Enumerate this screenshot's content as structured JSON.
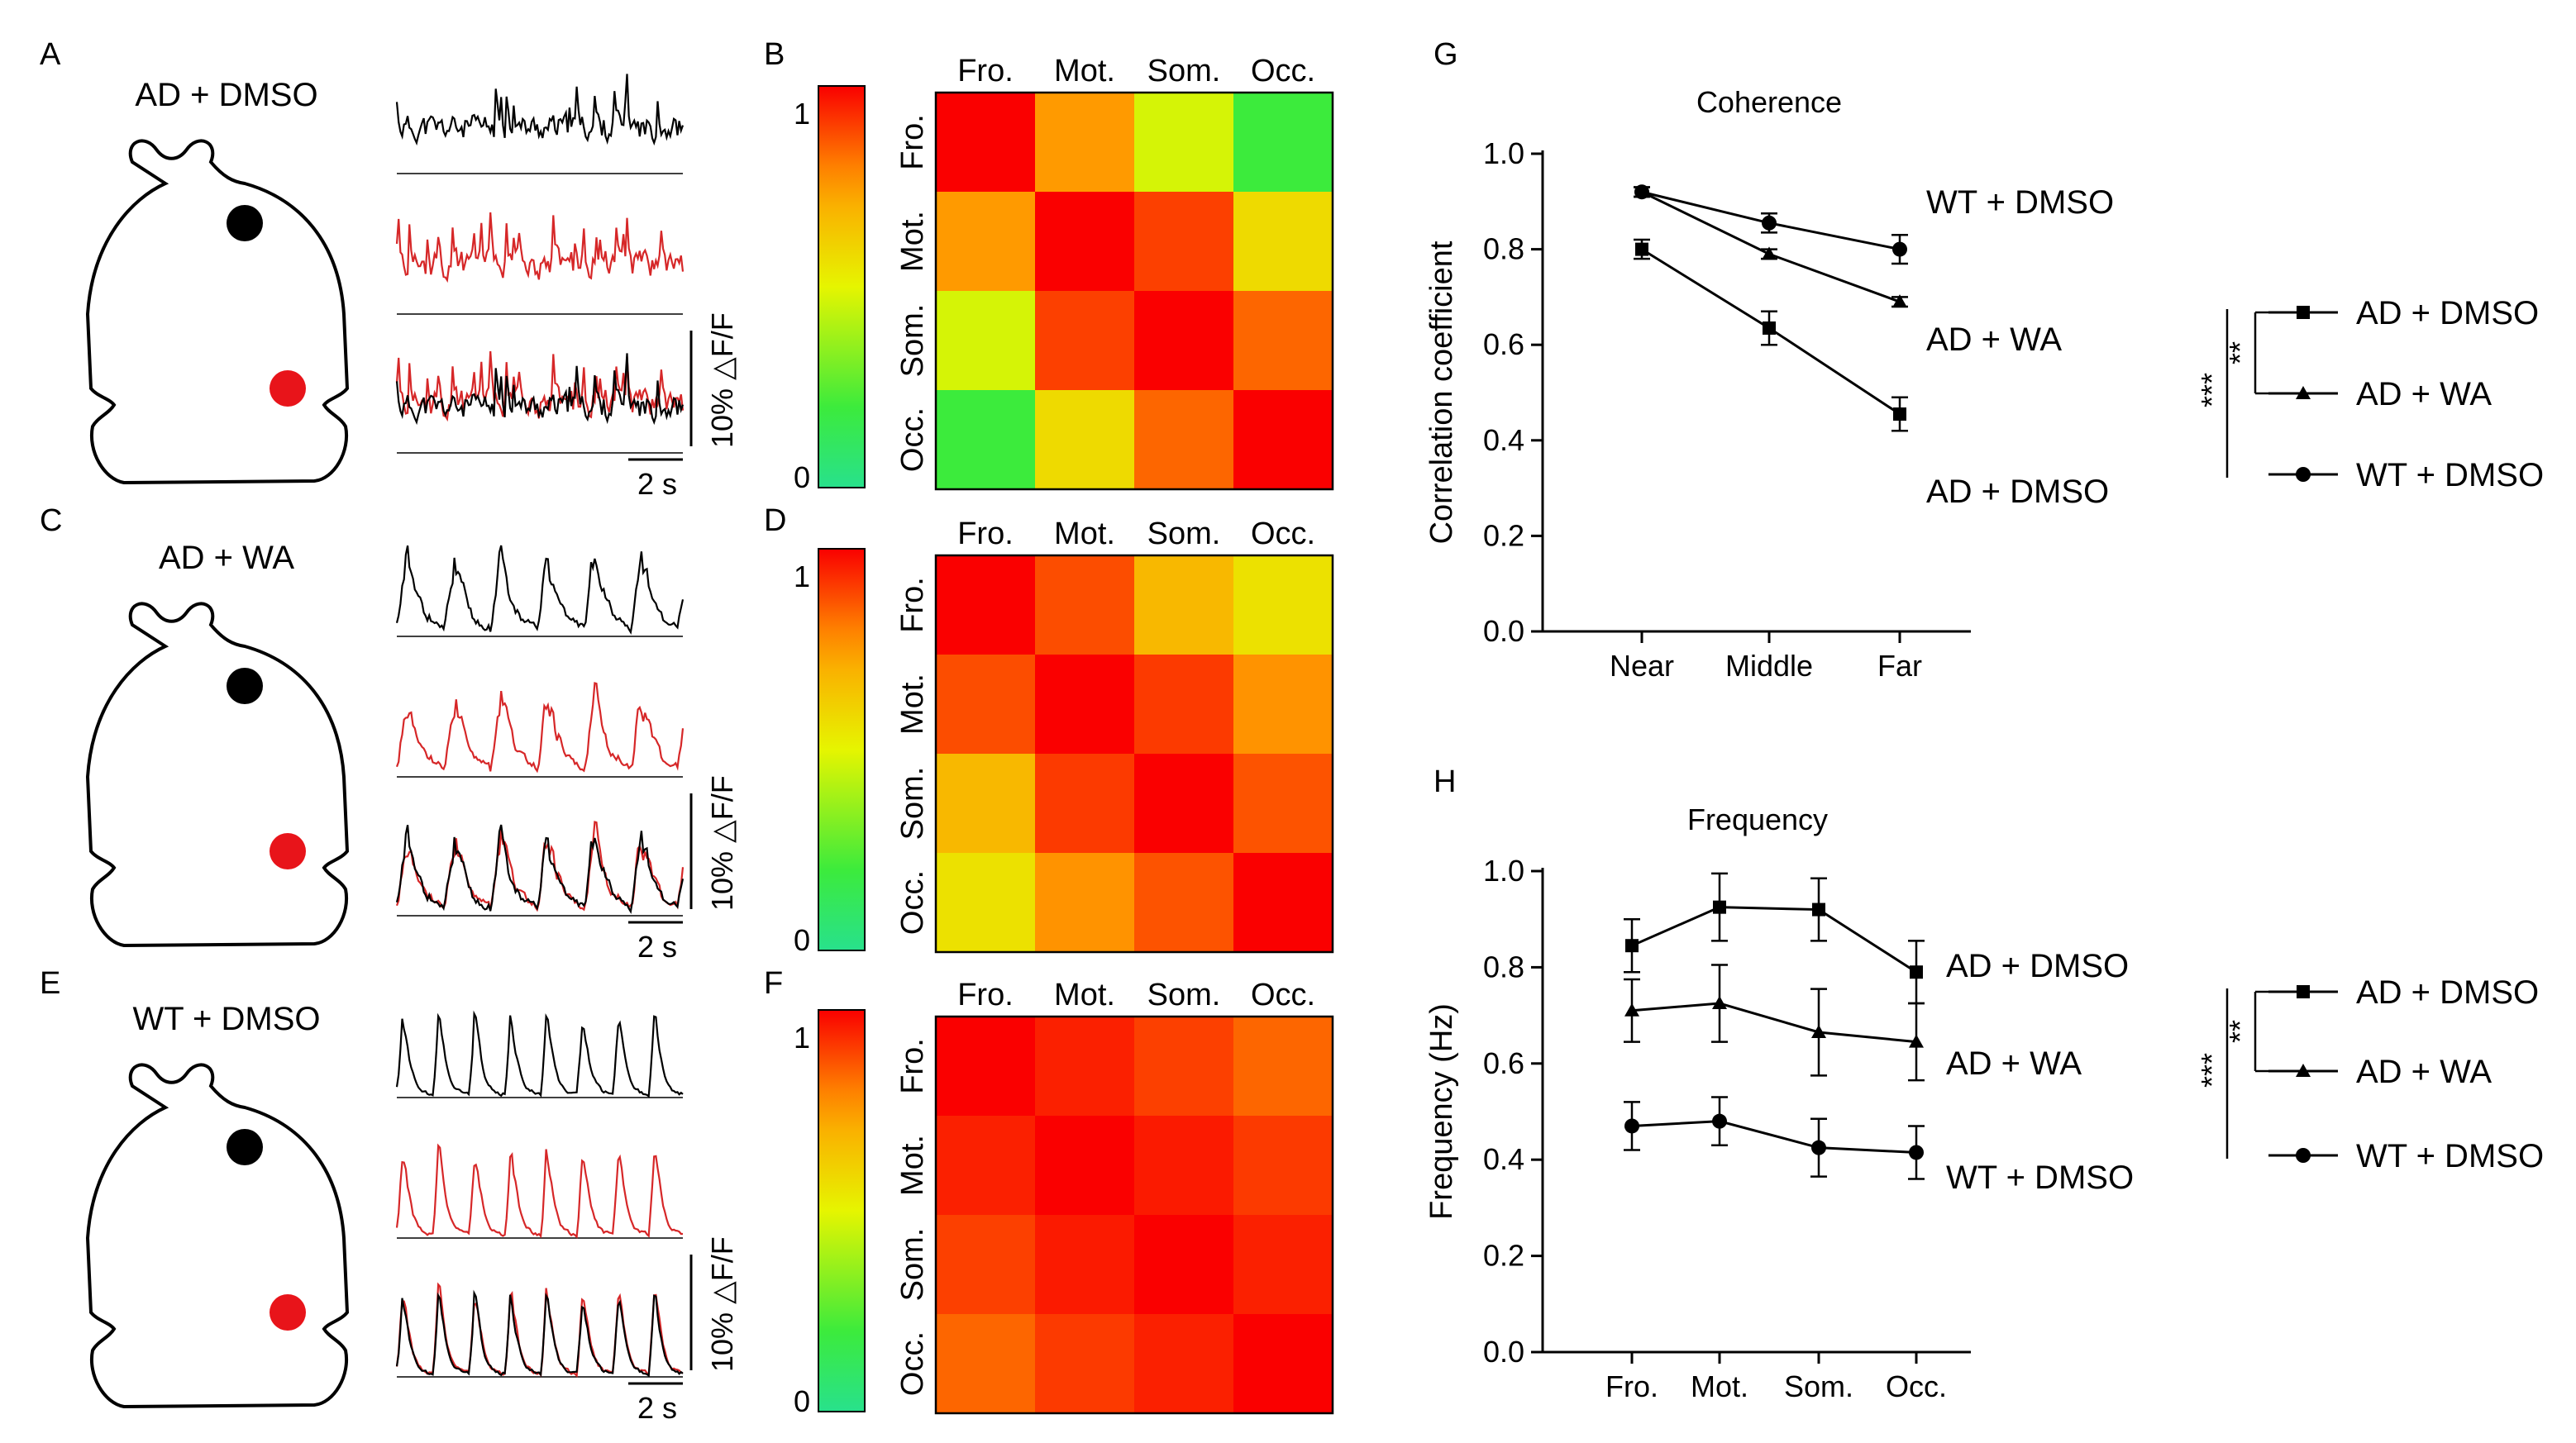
{
  "panels": {
    "A": "A",
    "B": "B",
    "C": "C",
    "D": "D",
    "E": "E",
    "F": "F",
    "G": "G",
    "H": "H"
  },
  "groups": [
    {
      "id": "ad_dmso",
      "title": "AD + DMSO"
    },
    {
      "id": "ad_wa",
      "title": "AD + WA"
    },
    {
      "id": "wt_dmso",
      "title": "WT + DMSO"
    }
  ],
  "scale_bar": {
    "amplitude": "10% △F/F",
    "time": "2 s"
  },
  "colors": {
    "trace1": "#000000",
    "trace2": "#d62728",
    "dot1": "#000000",
    "dot2": "#e8141a"
  },
  "heatmap": {
    "regions": [
      "Fro.",
      "Mot.",
      "Som.",
      "Occ."
    ],
    "colorbar": {
      "max_label": "1",
      "min_label": "0"
    },
    "matrices": [
      [
        [
          1.0,
          0.76,
          0.47,
          0.2
        ],
        [
          0.76,
          1.0,
          0.9,
          0.58
        ],
        [
          0.47,
          0.9,
          1.0,
          0.84
        ],
        [
          0.2,
          0.58,
          0.84,
          1.0
        ]
      ],
      [
        [
          1.0,
          0.88,
          0.68,
          0.56
        ],
        [
          0.88,
          1.0,
          0.91,
          0.77
        ],
        [
          0.68,
          0.91,
          1.0,
          0.87
        ],
        [
          0.56,
          0.77,
          0.87,
          1.0
        ]
      ],
      [
        [
          1.0,
          0.95,
          0.9,
          0.84
        ],
        [
          0.95,
          1.0,
          0.96,
          0.91
        ],
        [
          0.9,
          0.96,
          1.0,
          0.95
        ],
        [
          0.84,
          0.91,
          0.95,
          1.0
        ]
      ]
    ]
  },
  "chart_data": [
    {
      "type": "line",
      "title": "Coherence",
      "xlabel": "",
      "ylabel": "Correlation coefficient",
      "categories": [
        "Near",
        "Middle",
        "Far"
      ],
      "ylim": [
        0.0,
        1.0
      ],
      "yticks": [
        "0.0",
        "0.2",
        "0.4",
        "0.6",
        "0.8",
        "1.0"
      ],
      "series": [
        {
          "name": "WT + DMSO",
          "marker": "circle",
          "values": [
            0.92,
            0.855,
            0.8
          ],
          "errors": [
            0.01,
            0.02,
            0.03
          ]
        },
        {
          "name": "AD + WA",
          "marker": "triangle",
          "values": [
            0.92,
            0.79,
            0.69
          ],
          "errors": [
            0.01,
            0.01,
            0.01
          ]
        },
        {
          "name": "AD + DMSO",
          "marker": "square",
          "values": [
            0.8,
            0.635,
            0.455
          ],
          "errors": [
            0.02,
            0.035,
            0.035
          ]
        }
      ],
      "legend": [
        "AD + DMSO",
        "AD + WA",
        "WT + DMSO"
      ],
      "significance": {
        "inner": "**",
        "outer": "***"
      }
    },
    {
      "type": "line",
      "title": "Frequency",
      "xlabel": "",
      "ylabel": "Frequency (Hz)",
      "categories": [
        "Fro.",
        "Mot.",
        "Som.",
        "Occ."
      ],
      "ylim": [
        0.0,
        1.0
      ],
      "yticks": [
        "0.0",
        "0.2",
        "0.4",
        "0.6",
        "0.8",
        "1.0"
      ],
      "series": [
        {
          "name": "AD + DMSO",
          "marker": "square",
          "values": [
            0.845,
            0.925,
            0.92,
            0.79
          ],
          "errors": [
            0.055,
            0.07,
            0.065,
            0.065
          ]
        },
        {
          "name": "AD + WA",
          "marker": "triangle",
          "values": [
            0.71,
            0.725,
            0.665,
            0.645
          ],
          "errors": [
            0.065,
            0.08,
            0.09,
            0.08
          ]
        },
        {
          "name": "WT + DMSO",
          "marker": "circle",
          "values": [
            0.47,
            0.48,
            0.425,
            0.415
          ],
          "errors": [
            0.05,
            0.05,
            0.06,
            0.055
          ]
        }
      ],
      "legend": [
        "AD + DMSO",
        "AD + WA",
        "WT + DMSO"
      ],
      "significance": {
        "inner": "**",
        "outer": "***"
      }
    }
  ]
}
